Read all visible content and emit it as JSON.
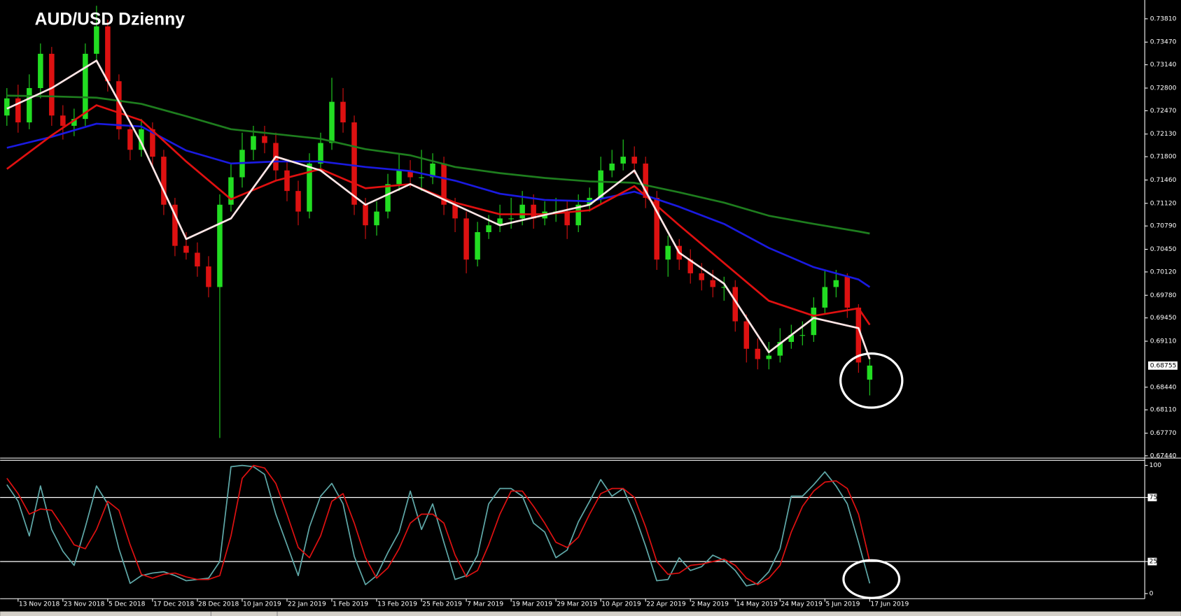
{
  "chart_data": [
    {
      "type": "candlestick",
      "title": "AUD/USD Dzienny",
      "categories": [
        null,
        "13 Nov 2018",
        null,
        null,
        null,
        "23 Nov 2018",
        null,
        null,
        null,
        "5 Dec 2018",
        null,
        null,
        null,
        "17 Dec 2018",
        null,
        null,
        null,
        "28 Dec 2018",
        null,
        null,
        null,
        "10 Jan 2019",
        null,
        null,
        null,
        "22 Jan 2019",
        null,
        null,
        null,
        "1 Feb 2019",
        null,
        null,
        null,
        "13 Feb 2019",
        null,
        null,
        null,
        "25 Feb 2019",
        null,
        null,
        null,
        "7 Mar 2019",
        null,
        null,
        null,
        "19 Mar 2019",
        null,
        null,
        null,
        "29 Mar 2019",
        null,
        null,
        null,
        "10 Apr 2019",
        null,
        null,
        null,
        "22 Apr 2019",
        null,
        null,
        null,
        "2 May 2019",
        null,
        null,
        null,
        "14 May 2019",
        null,
        null,
        null,
        "24 May 2019",
        null,
        null,
        null,
        "5 Jun 2019",
        null,
        null,
        null,
        "17 Jun 2019"
      ],
      "open": [
        0.724,
        0.7265,
        0.723,
        0.728,
        0.733,
        0.724,
        0.7225,
        0.7235,
        0.733,
        0.737,
        0.729,
        0.722,
        0.719,
        0.722,
        0.718,
        0.711,
        0.705,
        0.704,
        0.702,
        0.699,
        0.711,
        0.715,
        0.719,
        0.721,
        0.72,
        0.716,
        0.713,
        0.71,
        0.717,
        0.72,
        0.726,
        0.723,
        0.711,
        0.708,
        0.71,
        0.714,
        0.716,
        0.715,
        0.715,
        0.717,
        0.711,
        0.709,
        0.703,
        0.707,
        0.708,
        0.709,
        0.709,
        0.711,
        0.709,
        0.71,
        0.71,
        0.708,
        0.711,
        0.712,
        0.716,
        0.717,
        0.718,
        0.717,
        0.712,
        0.703,
        0.705,
        0.703,
        0.701,
        0.7,
        0.699,
        0.699,
        0.694,
        0.69,
        0.6885,
        0.689,
        0.691,
        0.692,
        0.692,
        0.696,
        0.699,
        0.7005,
        0.696,
        0.6855
      ],
      "high": [
        0.728,
        0.7285,
        0.73,
        0.7345,
        0.734,
        0.7255,
        0.725,
        0.7345,
        0.74,
        0.738,
        0.73,
        0.723,
        0.7235,
        0.723,
        0.719,
        0.712,
        0.707,
        0.7055,
        0.7035,
        0.7125,
        0.717,
        0.7215,
        0.7225,
        0.7225,
        0.7215,
        0.7175,
        0.7145,
        0.7185,
        0.7215,
        0.7295,
        0.728,
        0.724,
        0.712,
        0.7115,
        0.7155,
        0.7185,
        0.7175,
        0.719,
        0.7185,
        0.718,
        0.712,
        0.71,
        0.7085,
        0.7095,
        0.711,
        0.712,
        0.713,
        0.7125,
        0.7115,
        0.712,
        0.7115,
        0.7125,
        0.7135,
        0.718,
        0.719,
        0.7205,
        0.7195,
        0.718,
        0.713,
        0.7065,
        0.706,
        0.7045,
        0.7025,
        0.7015,
        0.7005,
        0.7,
        0.695,
        0.6915,
        0.691,
        0.693,
        0.6935,
        0.694,
        0.6975,
        0.7015,
        0.7015,
        0.701,
        0.6965,
        0.6885
      ],
      "low": [
        0.7225,
        0.7215,
        0.722,
        0.7265,
        0.7225,
        0.7205,
        0.721,
        0.7225,
        0.732,
        0.7275,
        0.7205,
        0.7175,
        0.718,
        0.7165,
        0.7095,
        0.7035,
        0.703,
        0.7005,
        0.6975,
        0.677,
        0.71,
        0.7135,
        0.7175,
        0.7185,
        0.7145,
        0.7115,
        0.708,
        0.709,
        0.716,
        0.719,
        0.7215,
        0.7095,
        0.706,
        0.7065,
        0.709,
        0.713,
        0.7135,
        0.713,
        0.714,
        0.7095,
        0.707,
        0.701,
        0.702,
        0.706,
        0.707,
        0.7075,
        0.708,
        0.7075,
        0.708,
        0.7085,
        0.706,
        0.707,
        0.71,
        0.711,
        0.715,
        0.716,
        0.7155,
        0.7105,
        0.7015,
        0.7005,
        0.7015,
        0.6995,
        0.6985,
        0.6975,
        0.697,
        0.6925,
        0.688,
        0.687,
        0.687,
        0.688,
        0.69,
        0.6905,
        0.691,
        0.695,
        0.6975,
        0.6945,
        0.6865,
        0.6832
      ],
      "close": [
        0.7265,
        0.723,
        0.728,
        0.733,
        0.724,
        0.7225,
        0.7235,
        0.733,
        0.737,
        0.729,
        0.722,
        0.719,
        0.722,
        0.718,
        0.711,
        0.705,
        0.704,
        0.702,
        0.699,
        0.711,
        0.715,
        0.719,
        0.721,
        0.72,
        0.716,
        0.713,
        0.71,
        0.717,
        0.72,
        0.726,
        0.723,
        0.711,
        0.708,
        0.71,
        0.714,
        0.716,
        0.715,
        0.715,
        0.717,
        0.711,
        0.709,
        0.703,
        0.707,
        0.708,
        0.709,
        0.709,
        0.711,
        0.709,
        0.71,
        0.71,
        0.708,
        0.711,
        0.712,
        0.716,
        0.717,
        0.718,
        0.717,
        0.712,
        0.703,
        0.705,
        0.703,
        0.701,
        0.7,
        0.699,
        0.699,
        0.694,
        0.69,
        0.6885,
        0.689,
        0.691,
        0.692,
        0.692,
        0.696,
        0.699,
        0.7,
        0.696,
        0.688,
        0.68755
      ],
      "up_color": "#22dd22",
      "down_color": "#dd1111",
      "series": [
        {
          "color": "#1e7d1e",
          "x": [
            0,
            4,
            8,
            12,
            16,
            20,
            24,
            28,
            32,
            36,
            40,
            44,
            48,
            52,
            56,
            60,
            64,
            68,
            72,
            76,
            77
          ],
          "values": [
            0.7269,
            0.7268,
            0.7266,
            0.7257,
            0.7239,
            0.722,
            0.7213,
            0.7206,
            0.7191,
            0.7182,
            0.7165,
            0.7156,
            0.7149,
            0.7144,
            0.7142,
            0.7128,
            0.7113,
            0.7094,
            0.7082,
            0.7071,
            0.7068
          ]
        },
        {
          "color": "#1a1ae0",
          "x": [
            0,
            4,
            8,
            12,
            16,
            20,
            24,
            28,
            32,
            36,
            40,
            44,
            48,
            52,
            56,
            60,
            64,
            68,
            72,
            76,
            77
          ],
          "values": [
            0.7193,
            0.7209,
            0.7228,
            0.7224,
            0.7189,
            0.717,
            0.7173,
            0.7173,
            0.7165,
            0.7159,
            0.7145,
            0.7126,
            0.7117,
            0.7115,
            0.7129,
            0.7107,
            0.7082,
            0.7047,
            0.7019,
            0.7001,
            0.699
          ]
        },
        {
          "color": "#e01010",
          "x": [
            0,
            4,
            8,
            12,
            16,
            20,
            24,
            28,
            32,
            36,
            40,
            44,
            48,
            52,
            56,
            60,
            64,
            68,
            72,
            76,
            77
          ],
          "values": [
            0.7162,
            0.7211,
            0.7255,
            0.7233,
            0.7173,
            0.7118,
            0.7145,
            0.7162,
            0.7134,
            0.714,
            0.7113,
            0.7096,
            0.7096,
            0.7102,
            0.7137,
            0.708,
            0.7025,
            0.697,
            0.6948,
            0.6959,
            0.6935
          ]
        },
        {
          "color": "#ffe6e6",
          "x": [
            0,
            4,
            8,
            12,
            16,
            20,
            24,
            28,
            32,
            36,
            40,
            44,
            48,
            52,
            56,
            60,
            64,
            68,
            72,
            76,
            77
          ],
          "values": [
            0.725,
            0.728,
            0.732,
            0.72,
            0.706,
            0.709,
            0.718,
            0.716,
            0.711,
            0.714,
            0.711,
            0.708,
            0.7095,
            0.711,
            0.716,
            0.704,
            0.6995,
            0.6895,
            0.6945,
            0.693,
            0.6885
          ]
        }
      ],
      "ylim": [
        0.67407,
        0.74084
      ],
      "yticks": [
        {
          "value": 0.7381,
          "label": "0.73810"
        },
        {
          "value": 0.7347,
          "label": "0.73470"
        },
        {
          "value": 0.7314,
          "label": "0.73140"
        },
        {
          "value": 0.728,
          "label": "0.72800"
        },
        {
          "value": 0.7247,
          "label": "0.72470"
        },
        {
          "value": 0.7213,
          "label": "0.72130"
        },
        {
          "value": 0.718,
          "label": "0.71800"
        },
        {
          "value": 0.7146,
          "label": "0.71460"
        },
        {
          "value": 0.7112,
          "label": "0.71120"
        },
        {
          "value": 0.7079,
          "label": "0.70790"
        },
        {
          "value": 0.7045,
          "label": "0.70450"
        },
        {
          "value": 0.7012,
          "label": "0.70120"
        },
        {
          "value": 0.6978,
          "label": "0.69780"
        },
        {
          "value": 0.6945,
          "label": "0.69450"
        },
        {
          "value": 0.6911,
          "label": "0.69110"
        },
        {
          "value": 0.6844,
          "label": "0.68440"
        },
        {
          "value": 0.6811,
          "label": "0.68110"
        },
        {
          "value": 0.6777,
          "label": "0.67770"
        },
        {
          "value": 0.6744,
          "label": "0.67440"
        }
      ],
      "last_price": 0.68755
    },
    {
      "type": "line",
      "series": [
        {
          "color": "#5fa8a8",
          "values": [
            85,
            72,
            45,
            84,
            50,
            33,
            22,
            52,
            84,
            70,
            35,
            8,
            14,
            16,
            17,
            14,
            10,
            11,
            12,
            25,
            99,
            100,
            99,
            93,
            62,
            38,
            14,
            52,
            76,
            86,
            70,
            29,
            7,
            14,
            32,
            48,
            80,
            50,
            70,
            40,
            11,
            14,
            30,
            70,
            82,
            82,
            76,
            55,
            48,
            28,
            34,
            56,
            72,
            89,
            76,
            82,
            62,
            37,
            10,
            11,
            28,
            18,
            21,
            30,
            26,
            18,
            6,
            8,
            17,
            35,
            76,
            76,
            85,
            95,
            84,
            70,
            40,
            8
          ]
        },
        {
          "color": "#dd1111",
          "values": [
            90,
            78,
            62,
            66,
            65,
            52,
            38,
            35,
            50,
            72,
            65,
            38,
            15,
            12,
            15,
            16,
            13,
            11,
            11,
            14,
            45,
            90,
            100,
            98,
            86,
            62,
            36,
            28,
            45,
            72,
            78,
            55,
            28,
            12,
            20,
            35,
            55,
            62,
            62,
            55,
            30,
            13,
            18,
            38,
            62,
            80,
            80,
            68,
            55,
            40,
            36,
            44,
            62,
            78,
            82,
            82,
            75,
            52,
            25,
            15,
            16,
            22,
            23,
            25,
            27,
            22,
            12,
            7,
            12,
            22,
            48,
            68,
            80,
            87,
            88,
            82,
            62,
            25
          ]
        }
      ],
      "ylim": [
        -4,
        104
      ],
      "yticks": [
        0,
        25,
        75,
        100
      ],
      "levels": [
        25,
        75
      ]
    }
  ]
}
